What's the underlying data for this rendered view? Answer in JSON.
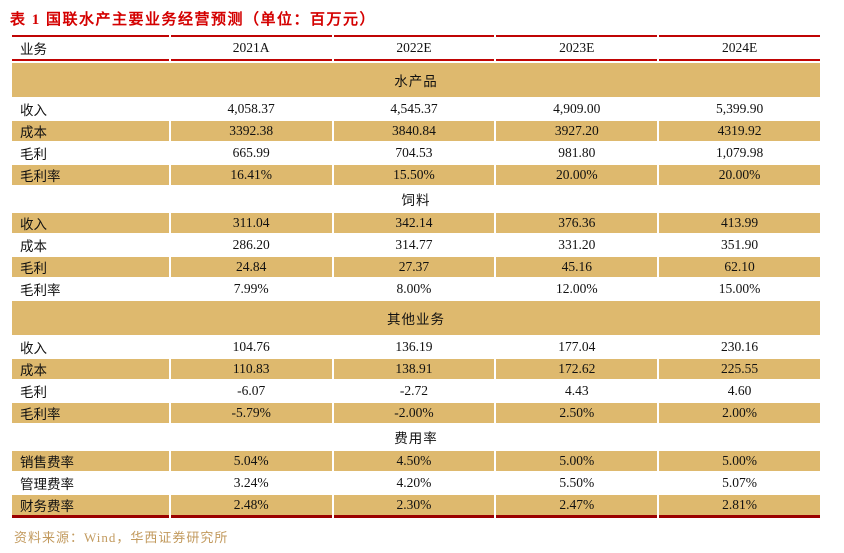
{
  "title": "表 1 国联水产主要业务经营预测（单位：百万元）",
  "source_note": "资料来源：Wind，华西证券研究所",
  "colors": {
    "title_red": "#d40000",
    "rule_red": "#c00404",
    "rule_dark_red": "#9b0000",
    "band_tan": "#deb96e",
    "source_gold": "#c29a5e"
  },
  "table": {
    "columns": [
      "业务",
      "2021A",
      "2022E",
      "2023E",
      "2024E"
    ],
    "sections": [
      {
        "name": "水产品",
        "rows": [
          {
            "label": "收入",
            "values": [
              "4,058.37",
              "4,545.37",
              "4,909.00",
              "5,399.90"
            ]
          },
          {
            "label": "成本",
            "values": [
              "3392.38",
              "3840.84",
              "3927.20",
              "4319.92"
            ]
          },
          {
            "label": "毛利",
            "values": [
              "665.99",
              "704.53",
              "981.80",
              "1,079.98"
            ]
          },
          {
            "label": "毛利率",
            "values": [
              "16.41%",
              "15.50%",
              "20.00%",
              "20.00%"
            ]
          }
        ]
      },
      {
        "name": "饲料",
        "rows": [
          {
            "label": "收入",
            "values": [
              "311.04",
              "342.14",
              "376.36",
              "413.99"
            ]
          },
          {
            "label": "成本",
            "values": [
              "286.20",
              "314.77",
              "331.20",
              "351.90"
            ]
          },
          {
            "label": "毛利",
            "values": [
              "24.84",
              "27.37",
              "45.16",
              "62.10"
            ]
          },
          {
            "label": "毛利率",
            "values": [
              "7.99%",
              "8.00%",
              "12.00%",
              "15.00%"
            ]
          }
        ]
      },
      {
        "name": "其他业务",
        "rows": [
          {
            "label": "收入",
            "values": [
              "104.76",
              "136.19",
              "177.04",
              "230.16"
            ]
          },
          {
            "label": "成本",
            "values": [
              "110.83",
              "138.91",
              "172.62",
              "225.55"
            ]
          },
          {
            "label": "毛利",
            "values": [
              "-6.07",
              "-2.72",
              "4.43",
              "4.60"
            ]
          },
          {
            "label": "毛利率",
            "values": [
              "-5.79%",
              "-2.00%",
              "2.50%",
              "2.00%"
            ]
          }
        ]
      },
      {
        "name": "费用率",
        "rows": [
          {
            "label": "销售费率",
            "values": [
              "5.04%",
              "4.50%",
              "5.00%",
              "5.00%"
            ]
          },
          {
            "label": "管理费率",
            "values": [
              "3.24%",
              "4.20%",
              "5.50%",
              "5.07%"
            ]
          },
          {
            "label": "财务费率",
            "values": [
              "2.48%",
              "2.30%",
              "2.47%",
              "2.81%"
            ]
          }
        ]
      }
    ]
  }
}
